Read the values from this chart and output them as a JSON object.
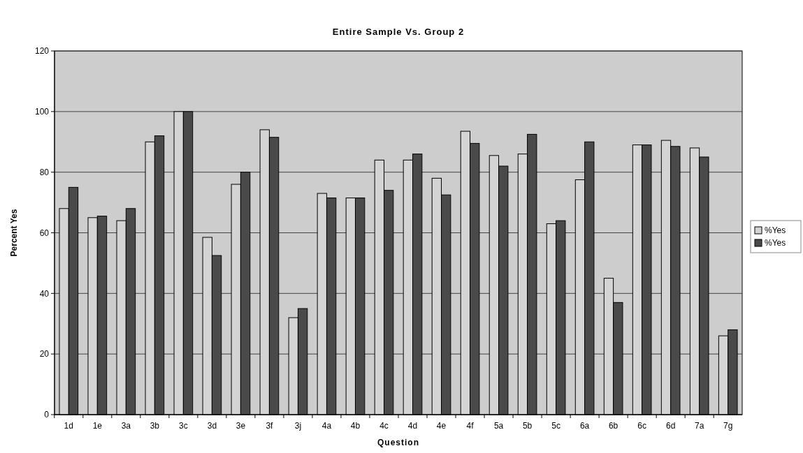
{
  "chart_data": {
    "type": "bar",
    "title": "Entire Sample Vs. Group 2",
    "xlabel": "Question",
    "ylabel": "Percent Yes",
    "categories": [
      "1d",
      "1e",
      "3a",
      "3b",
      "3c",
      "3d",
      "3e",
      "3f",
      "3j",
      "4a",
      "4b",
      "4c",
      "4d",
      "4e",
      "4f",
      "5a",
      "5b",
      "5c",
      "6a",
      "6b",
      "6c",
      "6d",
      "7a",
      "7g"
    ],
    "series": [
      {
        "name": "%Yes",
        "color": "#d4d4d4",
        "values": [
          68,
          65,
          64,
          90,
          100,
          58.5,
          76,
          94,
          32,
          73,
          71.5,
          84,
          84,
          78,
          93.5,
          85.5,
          86,
          63,
          77.5,
          45,
          89,
          90.5,
          88,
          26
        ]
      },
      {
        "name": "%Yes",
        "color": "#4a4a4a",
        "values": [
          75,
          65.5,
          68,
          92,
          100,
          52.5,
          80,
          91.5,
          35,
          71.5,
          71.5,
          74,
          86,
          72.5,
          89.5,
          82,
          92.5,
          64,
          90,
          37,
          89,
          88.5,
          85,
          28
        ]
      }
    ],
    "ylim": [
      0,
      120
    ],
    "yticks": [
      0,
      20,
      40,
      60,
      80,
      100,
      120
    ],
    "grid": "y",
    "legend": "right"
  }
}
